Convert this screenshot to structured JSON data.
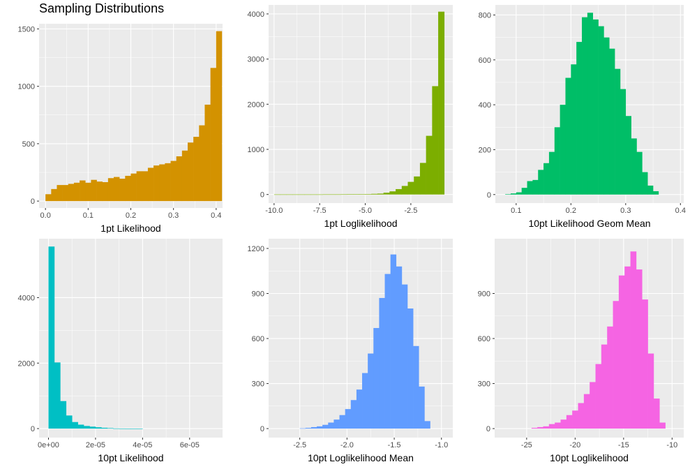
{
  "title": "Sampling Distributions",
  "chart_data": [
    {
      "type": "bar",
      "color": "#D39200",
      "xlabel": "1pt Likelihood",
      "ylabel": "",
      "xlim": [
        -0.015,
        0.415
      ],
      "ylim": [
        -60,
        1545
      ],
      "bin_width": 0.01333,
      "x_start": 0.0,
      "values": [
        60,
        105,
        140,
        140,
        150,
        160,
        180,
        160,
        185,
        170,
        165,
        200,
        210,
        195,
        220,
        240,
        260,
        260,
        290,
        310,
        320,
        330,
        350,
        390,
        440,
        510,
        560,
        660,
        840,
        1160,
        1480
      ],
      "xticks": [
        0.0,
        0.1,
        0.2,
        0.3,
        0.4
      ],
      "xtick_labels": [
        "0.0",
        "0.1",
        "0.2",
        "0.3",
        "0.4"
      ],
      "yticks": [
        0,
        500,
        1000,
        1500
      ],
      "ytick_labels": [
        "0",
        "500",
        "1000",
        "1500"
      ]
    },
    {
      "type": "bar",
      "color": "#7CAE00",
      "xlabel": "1pt Loglikelihood",
      "ylabel": "",
      "xlim": [
        -10.3,
        -0.2
      ],
      "ylim": [
        -190,
        4200
      ],
      "bin_width": 0.3333,
      "x_start": -10.0,
      "values": [
        2,
        2,
        2,
        2,
        2,
        2,
        2,
        2,
        3,
        3,
        3,
        4,
        5,
        6,
        8,
        10,
        15,
        20,
        40,
        70,
        120,
        190,
        280,
        400,
        700,
        1300,
        2400,
        4050
      ],
      "xticks": [
        -10.0,
        -7.5,
        -5.0,
        -2.5
      ],
      "xtick_labels": [
        "-10.0",
        "-7.5",
        "-5.0",
        "-2.5"
      ],
      "yticks": [
        0,
        1000,
        2000,
        3000,
        4000
      ],
      "ytick_labels": [
        "0",
        "1000",
        "2000",
        "3000",
        "4000"
      ]
    },
    {
      "type": "bar",
      "color": "#00BE67",
      "xlabel": "10pt Likelihood Geom Mean",
      "ylabel": "",
      "xlim": [
        0.062,
        0.406
      ],
      "ylim": [
        -38,
        845
      ],
      "bin_width": 0.01,
      "x_start": 0.08,
      "values": [
        2,
        5,
        10,
        30,
        60,
        65,
        110,
        140,
        190,
        300,
        400,
        520,
        580,
        680,
        790,
        810,
        780,
        750,
        700,
        650,
        560,
        470,
        350,
        250,
        190,
        100,
        40,
        15
      ],
      "xticks": [
        0.1,
        0.2,
        0.3,
        0.4
      ],
      "xtick_labels": [
        "0.1",
        "0.2",
        "0.3",
        "0.4"
      ],
      "yticks": [
        0,
        200,
        400,
        600,
        800
      ],
      "ytick_labels": [
        "0",
        "200",
        "400",
        "600",
        "800"
      ]
    },
    {
      "type": "bar",
      "color": "#00BFC4",
      "xlabel": "10pt Likelihood",
      "ylabel": "",
      "xlim": [
        -4e-06,
        7.4e-05
      ],
      "ylim": [
        -275,
        5800
      ],
      "bin_width": 2.5e-06,
      "x_start": 0.0,
      "values": [
        5560,
        2020,
        840,
        400,
        200,
        120,
        80,
        60,
        40,
        25,
        15,
        5,
        3,
        2,
        1,
        1
      ],
      "xticks": [
        0.0,
        2e-05,
        4e-05,
        6e-05
      ],
      "xtick_labels": [
        "0e+00",
        "2e-05",
        "4e-05",
        "6e-05"
      ],
      "yticks": [
        0,
        2000,
        4000
      ],
      "ytick_labels": [
        "0",
        "2000",
        "4000"
      ]
    },
    {
      "type": "bar",
      "color": "#619CFF",
      "xlabel": "10pt Loglikelihood Mean",
      "ylabel": "",
      "xlim": [
        -2.83,
        -0.88
      ],
      "ylim": [
        -60,
        1265
      ],
      "bin_width": 0.06,
      "x_start": -2.5,
      "values": [
        2,
        5,
        10,
        15,
        25,
        40,
        60,
        90,
        130,
        190,
        260,
        370,
        500,
        670,
        870,
        1030,
        1160,
        1080,
        960,
        800,
        550,
        280,
        50
      ],
      "xticks": [
        -2.5,
        -2.0,
        -1.5,
        -1.0
      ],
      "xtick_labels": [
        "-2.5",
        "-2.0",
        "-1.5",
        "-1.0"
      ],
      "yticks": [
        0,
        300,
        600,
        900,
        1200
      ],
      "ytick_labels": [
        "0",
        "300",
        "600",
        "900",
        "1200"
      ]
    },
    {
      "type": "bar",
      "color": "#F564E3",
      "xlabel": "10pt Loglikelihood",
      "ylabel": "",
      "xlim": [
        -28.3,
        -8.8
      ],
      "ylim": [
        -60,
        1265
      ],
      "bin_width": 0.6,
      "x_start": -24.5,
      "values": [
        5,
        10,
        15,
        30,
        40,
        60,
        90,
        120,
        170,
        230,
        310,
        430,
        560,
        680,
        850,
        1020,
        1080,
        1180,
        1060,
        860,
        500,
        200,
        40
      ],
      "xticks": [
        -25,
        -20,
        -15,
        -10
      ],
      "xtick_labels": [
        "-25",
        "-20",
        "-15",
        "-10"
      ],
      "yticks": [
        0,
        300,
        600,
        900
      ],
      "ytick_labels": [
        "0",
        "300",
        "600",
        "900"
      ]
    }
  ]
}
